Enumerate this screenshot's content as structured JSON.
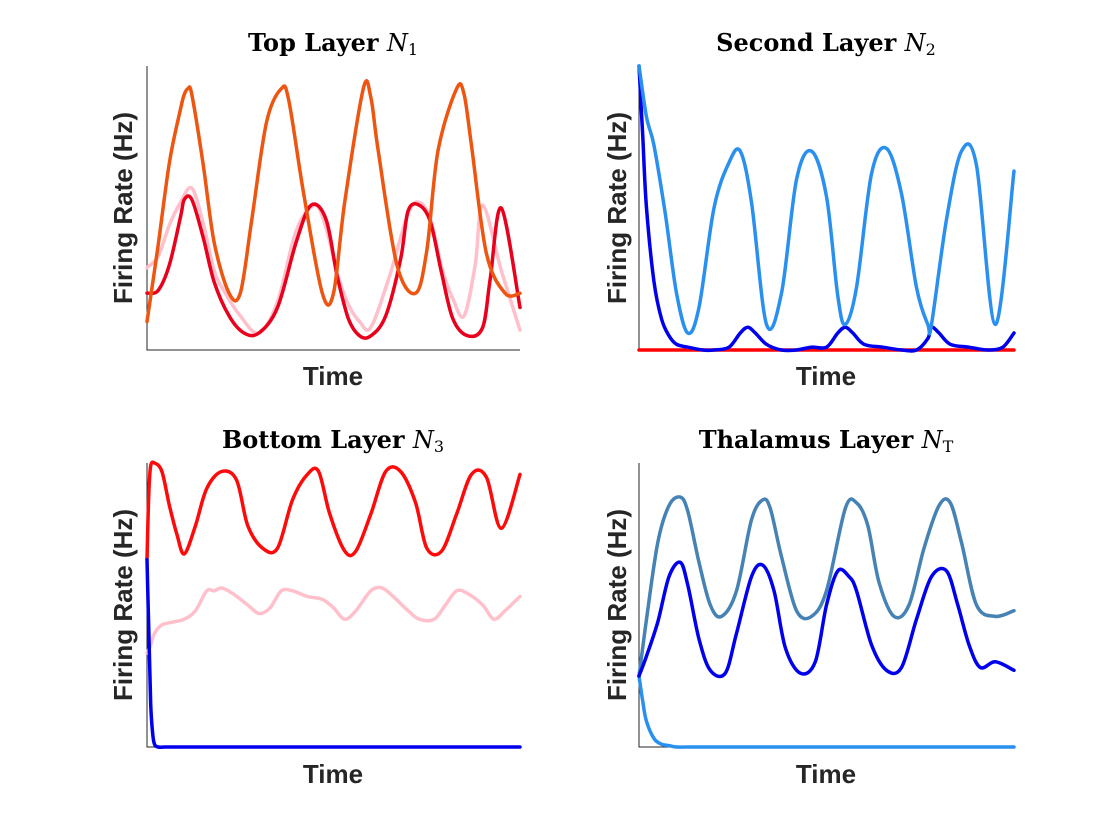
{
  "chart_data": [
    {
      "type": "line",
      "title": {
        "text": "Top Layer ",
        "symbol": "N",
        "sub": "1"
      },
      "xlabel": "Time",
      "ylabel": "Firing Rate (Hz)",
      "x_ticks_shown": false,
      "y_ticks_shown": false,
      "grid": false,
      "xlim": [
        0,
        1
      ],
      "ylim": [
        0,
        1
      ],
      "series": [
        {
          "color": "#ffc0cb",
          "x": [
            0,
            0.03,
            0.06,
            0.09,
            0.12,
            0.15,
            0.18,
            0.21,
            0.25,
            0.3,
            0.35,
            0.4,
            0.45,
            0.48,
            0.51,
            0.54,
            0.57,
            0.6,
            0.65,
            0.7,
            0.73,
            0.76,
            0.79,
            0.82,
            0.85,
            0.88,
            0.9,
            0.95,
            1.0
          ],
          "y": [
            0.29,
            0.33,
            0.44,
            0.52,
            0.57,
            0.45,
            0.28,
            0.2,
            0.12,
            0.06,
            0.17,
            0.42,
            0.51,
            0.43,
            0.27,
            0.16,
            0.1,
            0.08,
            0.26,
            0.48,
            0.52,
            0.46,
            0.29,
            0.18,
            0.12,
            0.3,
            0.51,
            0.28,
            0.07
          ]
        },
        {
          "color": "#e8001c",
          "x": [
            0,
            0.03,
            0.06,
            0.09,
            0.1,
            0.12,
            0.15,
            0.18,
            0.22,
            0.26,
            0.3,
            0.35,
            0.4,
            0.44,
            0.48,
            0.51,
            0.54,
            0.57,
            0.6,
            0.64,
            0.68,
            0.7,
            0.73,
            0.76,
            0.79,
            0.82,
            0.86,
            0.9,
            0.92,
            0.95,
            1.0
          ],
          "y": [
            0.2,
            0.21,
            0.3,
            0.47,
            0.53,
            0.53,
            0.4,
            0.24,
            0.12,
            0.06,
            0.06,
            0.15,
            0.38,
            0.51,
            0.46,
            0.26,
            0.11,
            0.05,
            0.05,
            0.12,
            0.32,
            0.49,
            0.51,
            0.45,
            0.27,
            0.11,
            0.05,
            0.08,
            0.25,
            0.5,
            0.15
          ]
        },
        {
          "color": "#ee5511",
          "x": [
            0,
            0.03,
            0.06,
            0.09,
            0.1,
            0.11,
            0.12,
            0.15,
            0.18,
            0.22,
            0.25,
            0.28,
            0.32,
            0.36,
            0.38,
            0.42,
            0.47,
            0.5,
            0.53,
            0.58,
            0.6,
            0.62,
            0.67,
            0.72,
            0.75,
            0.78,
            0.83,
            0.85,
            0.87,
            0.91,
            0.96,
            1.0
          ],
          "y": [
            0.1,
            0.37,
            0.66,
            0.85,
            0.9,
            0.92,
            0.9,
            0.66,
            0.38,
            0.2,
            0.2,
            0.45,
            0.8,
            0.92,
            0.88,
            0.55,
            0.2,
            0.2,
            0.52,
            0.92,
            0.89,
            0.7,
            0.3,
            0.2,
            0.35,
            0.7,
            0.92,
            0.9,
            0.72,
            0.34,
            0.2,
            0.2
          ]
        }
      ]
    },
    {
      "type": "line",
      "title": {
        "text": "Second Layer ",
        "symbol": "N",
        "sub": "2"
      },
      "xlabel": "Time",
      "ylabel": "Firing Rate (Hz)",
      "x_ticks_shown": false,
      "y_ticks_shown": false,
      "grid": false,
      "xlim": [
        0,
        1
      ],
      "ylim": [
        0,
        1
      ],
      "series": [
        {
          "color": "#ff0000",
          "x": [
            0,
            1
          ],
          "y": [
            0.0,
            0.0
          ]
        },
        {
          "color": "#0000ee",
          "x": [
            0,
            0.01,
            0.02,
            0.04,
            0.06,
            0.08,
            0.1,
            0.13,
            0.17,
            0.2,
            0.24,
            0.27,
            0.29,
            0.31,
            0.34,
            0.38,
            0.42,
            0.46,
            0.5,
            0.53,
            0.55,
            0.57,
            0.6,
            0.65,
            0.7,
            0.74,
            0.77,
            0.78,
            0.8,
            0.83,
            0.88,
            0.93,
            0.97,
            1.0
          ],
          "y": [
            1.0,
            0.75,
            0.5,
            0.24,
            0.11,
            0.05,
            0.02,
            0.01,
            0.0,
            0.0,
            0.01,
            0.06,
            0.08,
            0.06,
            0.02,
            0.0,
            0.0,
            0.01,
            0.01,
            0.06,
            0.08,
            0.06,
            0.02,
            0.01,
            0.0,
            0.0,
            0.04,
            0.08,
            0.06,
            0.02,
            0.01,
            0.0,
            0.01,
            0.06
          ]
        },
        {
          "color": "#2a90f0",
          "x": [
            0,
            0.02,
            0.04,
            0.07,
            0.1,
            0.13,
            0.16,
            0.2,
            0.24,
            0.27,
            0.3,
            0.34,
            0.38,
            0.42,
            0.46,
            0.5,
            0.53,
            0.55,
            0.58,
            0.62,
            0.66,
            0.7,
            0.74,
            0.77,
            0.78,
            0.82,
            0.86,
            0.9,
            0.95,
            1.0
          ],
          "y": [
            1.0,
            0.82,
            0.72,
            0.48,
            0.2,
            0.06,
            0.15,
            0.5,
            0.66,
            0.7,
            0.52,
            0.09,
            0.2,
            0.6,
            0.7,
            0.54,
            0.19,
            0.09,
            0.22,
            0.62,
            0.71,
            0.55,
            0.22,
            0.09,
            0.09,
            0.46,
            0.7,
            0.65,
            0.09,
            0.63
          ]
        }
      ]
    },
    {
      "type": "line",
      "title": {
        "text": "Bottom Layer ",
        "symbol": "N",
        "sub": "3"
      },
      "xlabel": "Time",
      "ylabel": "Firing Rate (Hz)",
      "x_ticks_shown": false,
      "y_ticks_shown": false,
      "grid": false,
      "xlim": [
        0,
        1
      ],
      "ylim": [
        0,
        1
      ],
      "series": [
        {
          "color": "#ffc0cb",
          "x": [
            0,
            0.01,
            0.02,
            0.04,
            0.07,
            0.1,
            0.13,
            0.16,
            0.18,
            0.2,
            0.23,
            0.27,
            0.3,
            0.33,
            0.36,
            0.39,
            0.43,
            0.47,
            0.5,
            0.53,
            0.56,
            0.6,
            0.63,
            0.66,
            0.7,
            0.73,
            0.77,
            0.8,
            0.83,
            0.86,
            0.9,
            0.93,
            0.96,
            1.0
          ],
          "y": [
            0.33,
            0.36,
            0.4,
            0.43,
            0.44,
            0.45,
            0.48,
            0.55,
            0.55,
            0.56,
            0.54,
            0.5,
            0.47,
            0.49,
            0.55,
            0.55,
            0.53,
            0.52,
            0.49,
            0.45,
            0.48,
            0.55,
            0.56,
            0.53,
            0.48,
            0.45,
            0.45,
            0.5,
            0.55,
            0.54,
            0.5,
            0.45,
            0.48,
            0.53
          ]
        },
        {
          "color": "#ff0a0a",
          "x": [
            0,
            0.005,
            0.01,
            0.02,
            0.04,
            0.06,
            0.08,
            0.1,
            0.13,
            0.16,
            0.2,
            0.24,
            0.27,
            0.31,
            0.35,
            0.39,
            0.43,
            0.46,
            0.49,
            0.53,
            0.56,
            0.6,
            0.64,
            0.68,
            0.72,
            0.75,
            0.79,
            0.83,
            0.87,
            0.91,
            0.95,
            1.0
          ],
          "y": [
            0.66,
            0.9,
            0.99,
            1.0,
            0.97,
            0.85,
            0.75,
            0.68,
            0.78,
            0.91,
            0.97,
            0.94,
            0.78,
            0.7,
            0.7,
            0.87,
            0.96,
            0.97,
            0.82,
            0.69,
            0.69,
            0.82,
            0.97,
            0.97,
            0.86,
            0.7,
            0.69,
            0.82,
            0.96,
            0.95,
            0.77,
            0.96
          ]
        },
        {
          "color": "#0000ee",
          "x": [
            0,
            0.005,
            0.01,
            0.015,
            0.02,
            0.03,
            0.05,
            0.08,
            0.12,
            0.2,
            0.4,
            0.6,
            0.8,
            1.0
          ],
          "y": [
            0.66,
            0.4,
            0.15,
            0.05,
            0.01,
            0.0,
            0.0,
            0.0,
            0.0,
            0.0,
            0.0,
            0.0,
            0.0,
            0.0
          ]
        }
      ]
    },
    {
      "type": "line",
      "title": {
        "text": "Thalamus Layer ",
        "symbol": "N",
        "sub": "T"
      },
      "xlabel": "Time",
      "ylabel": "Firing Rate (Hz)",
      "x_ticks_shown": false,
      "y_ticks_shown": false,
      "grid": false,
      "xlim": [
        0,
        1
      ],
      "ylim": [
        0,
        1
      ],
      "series": [
        {
          "color": "#2a90f0",
          "x": [
            0,
            0.01,
            0.02,
            0.04,
            0.06,
            0.08,
            0.1,
            0.14,
            0.2,
            0.4,
            0.6,
            0.8,
            1.0
          ],
          "y": [
            0.25,
            0.16,
            0.09,
            0.03,
            0.01,
            0.005,
            0.0,
            0.0,
            0.0,
            0.0,
            0.0,
            0.0,
            0.0
          ]
        },
        {
          "color": "#4682b4",
          "x": [
            0,
            0.02,
            0.05,
            0.08,
            0.11,
            0.13,
            0.16,
            0.19,
            0.22,
            0.26,
            0.3,
            0.33,
            0.35,
            0.38,
            0.42,
            0.46,
            0.5,
            0.55,
            0.58,
            0.61,
            0.64,
            0.68,
            0.72,
            0.76,
            0.8,
            0.83,
            0.86,
            0.9,
            0.95,
            1.0
          ],
          "y": [
            0.25,
            0.45,
            0.72,
            0.85,
            0.88,
            0.83,
            0.65,
            0.5,
            0.46,
            0.55,
            0.8,
            0.87,
            0.84,
            0.67,
            0.48,
            0.46,
            0.55,
            0.84,
            0.86,
            0.78,
            0.58,
            0.46,
            0.5,
            0.7,
            0.85,
            0.86,
            0.72,
            0.5,
            0.46,
            0.48
          ]
        },
        {
          "color": "#0000ee",
          "x": [
            0,
            0.02,
            0.05,
            0.08,
            0.11,
            0.13,
            0.16,
            0.19,
            0.23,
            0.26,
            0.3,
            0.33,
            0.36,
            0.39,
            0.43,
            0.47,
            0.5,
            0.53,
            0.56,
            0.58,
            0.62,
            0.66,
            0.7,
            0.74,
            0.78,
            0.82,
            0.85,
            0.88,
            0.91,
            0.95,
            1.0
          ],
          "y": [
            0.25,
            0.32,
            0.44,
            0.6,
            0.65,
            0.57,
            0.38,
            0.27,
            0.26,
            0.4,
            0.6,
            0.64,
            0.55,
            0.35,
            0.26,
            0.3,
            0.5,
            0.62,
            0.6,
            0.55,
            0.36,
            0.27,
            0.28,
            0.45,
            0.6,
            0.62,
            0.5,
            0.36,
            0.28,
            0.3,
            0.27
          ]
        }
      ]
    }
  ]
}
